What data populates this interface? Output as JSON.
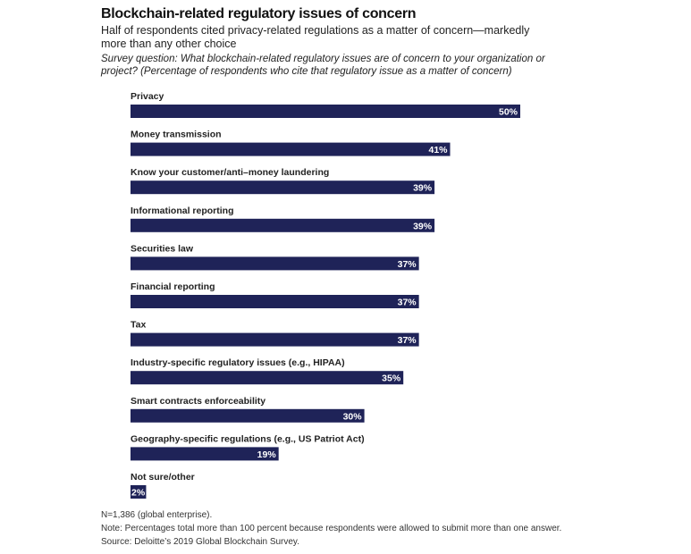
{
  "chart_data": {
    "type": "bar",
    "orientation": "horizontal",
    "title": "Blockchain-related regulatory issues of concern",
    "subtitle": "Half of respondents cited privacy-related regulations as a matter of concern—markedly more than any other choice",
    "survey_question": "Survey question: What blockchain-related regulatory issues are of concern to your organization or project? (Percentage of respondents who cite that regulatory issue as a matter of concern)",
    "categories": [
      "Privacy",
      "Money transmission",
      "Know your customer/anti–money laundering",
      "Informational reporting",
      "Securities law",
      "Financial reporting",
      "Tax",
      "Industry-specific regulatory issues (e.g., HIPAA)",
      "Smart contracts enforceability",
      "Geography-specific regulations (e.g., US Patriot Act)",
      "Not sure/other"
    ],
    "values": [
      50,
      41,
      39,
      39,
      37,
      37,
      37,
      35,
      30,
      19,
      2
    ],
    "value_suffix": "%",
    "bar_color": "#1f2358",
    "label_color": "#ffffff",
    "xlabel": "",
    "ylabel": "",
    "xlim": [
      0,
      50
    ],
    "grid": false
  },
  "footnotes": {
    "n": "N=1,386 (global enterprise).",
    "note": "Note: Percentages total more than 100 percent because respondents were allowed to submit more than one answer.",
    "source": "Source: Deloitte’s 2019 Global Blockchain Survey."
  }
}
